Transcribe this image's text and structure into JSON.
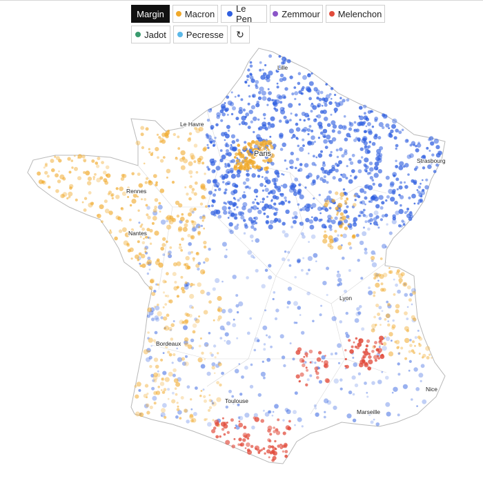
{
  "controls": {
    "buttons": [
      {
        "key": "margin",
        "label": "Margin",
        "active": true
      },
      {
        "key": "macron",
        "label": "Macron",
        "color": "#f0a92b"
      },
      {
        "key": "lepen",
        "label": "Le Pen",
        "color": "#2f5fe0"
      },
      {
        "key": "zemmour",
        "label": "Zemmour",
        "color": "#8b55c8"
      },
      {
        "key": "melenchon",
        "label": "Melenchon",
        "color": "#e14b3b"
      },
      {
        "key": "jadot",
        "label": "Jadot",
        "color": "#3a9a6e"
      },
      {
        "key": "pecresse",
        "label": "Pecresse",
        "color": "#5bb8e8"
      }
    ],
    "reset_icon": "refresh-icon"
  },
  "map": {
    "cities": [
      {
        "name": "Lille",
        "size": "small"
      },
      {
        "name": "Le Havre",
        "size": "small"
      },
      {
        "name": "Paris",
        "size": "big"
      },
      {
        "name": "Strasbourg",
        "size": "small"
      },
      {
        "name": "Rennes",
        "size": "small"
      },
      {
        "name": "Nantes",
        "size": "small"
      },
      {
        "name": "Lyon",
        "size": "small"
      },
      {
        "name": "Bordeaux",
        "size": "small"
      },
      {
        "name": "Toulouse",
        "size": "small"
      },
      {
        "name": "Nice",
        "size": "small"
      },
      {
        "name": "Marseille",
        "size": "small"
      }
    ],
    "colors": {
      "macron": "#f0a92b",
      "lepen": "#2f5fe0",
      "melenchon": "#e14b3b",
      "zemmour": "#8b55c8",
      "jadot": "#3a9a6e",
      "pecresse": "#5bb8e8",
      "border": "#b8b8b8"
    }
  }
}
